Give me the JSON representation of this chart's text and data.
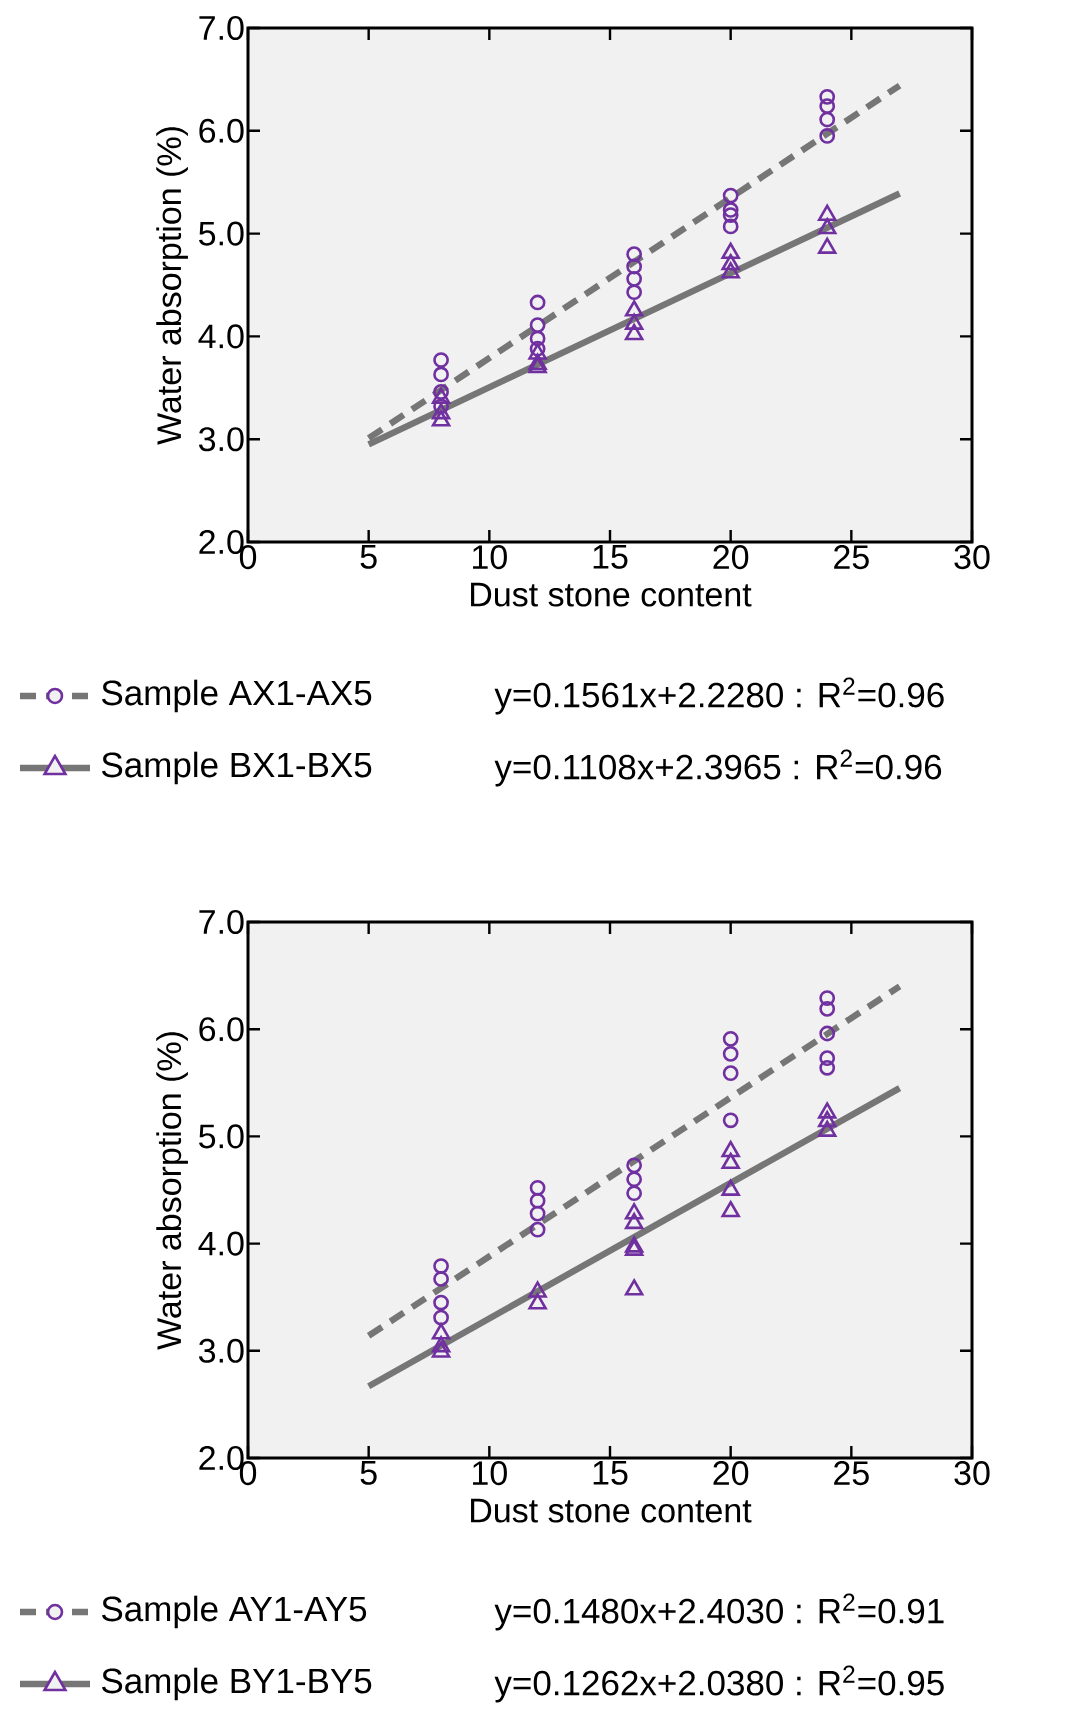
{
  "chart_data": [
    {
      "type": "scatter",
      "xlabel": "Dust stone content",
      "ylabel": "Water absorption (%)",
      "xlim": [
        0,
        30
      ],
      "ylim": [
        2,
        7
      ],
      "xticks": [
        0,
        5,
        10,
        15,
        20,
        25,
        30
      ],
      "yticks": [
        {
          "value": 2,
          "label": "2.0"
        },
        {
          "value": 3,
          "label": "3.0"
        },
        {
          "value": 4,
          "label": "4.0"
        },
        {
          "value": 5,
          "label": "5.0"
        },
        {
          "value": 6,
          "label": "6.0"
        },
        {
          "value": 7,
          "label": "7.0"
        }
      ],
      "legend": "bottom",
      "grid": false,
      "annotations": [
        "y=0.1561x+2.2280 : R$^{2}$=0.96",
        "y=0.1108x+2.3965 : R$^{2}$=0.96"
      ],
      "series": [
        {
          "name": "Sample AX1-AX5",
          "color": "#7030a0",
          "marker": "circle",
          "x": [
            8,
            8,
            8,
            8,
            12,
            12,
            12,
            12,
            16,
            16,
            16,
            16,
            20,
            20,
            20,
            20,
            24,
            24,
            24,
            24
          ],
          "values": [
            3.77,
            3.63,
            3.46,
            3.32,
            4.33,
            4.11,
            3.98,
            3.88,
            4.8,
            4.68,
            4.56,
            4.43,
            5.37,
            5.23,
            5.18,
            5.07,
            6.33,
            6.24,
            6.11,
            5.95
          ]
        },
        {
          "name": "Sample BX1-BX5",
          "color": "#7030a0",
          "marker": "triangle",
          "x": [
            8,
            8,
            8,
            12,
            12,
            12,
            16,
            16,
            16,
            20,
            20,
            20,
            24,
            24,
            24
          ],
          "values": [
            3.4,
            3.25,
            3.18,
            3.83,
            3.73,
            3.7,
            4.25,
            4.12,
            4.02,
            4.81,
            4.7,
            4.62,
            5.18,
            5.05,
            4.86
          ]
        },
        {
          "type": "line",
          "color": "#767676",
          "line_style": "dashed",
          "x": [
            5,
            27
          ],
          "values": [
            3.01,
            6.44
          ]
        },
        {
          "type": "line",
          "color": "#767676",
          "line_style": "solid",
          "x": [
            5,
            27
          ],
          "values": [
            2.95,
            5.39
          ]
        }
      ]
    },
    {
      "type": "scatter",
      "xlabel": "Dust stone content",
      "ylabel": "Water absorption (%)",
      "xlim": [
        0,
        30
      ],
      "ylim": [
        2,
        7
      ],
      "xticks": [
        0,
        5,
        10,
        15,
        20,
        25,
        30
      ],
      "yticks": [
        {
          "value": 2,
          "label": "2.0"
        },
        {
          "value": 3,
          "label": "3.0"
        },
        {
          "value": 4,
          "label": "4.0"
        },
        {
          "value": 5,
          "label": "5.0"
        },
        {
          "value": 6,
          "label": "6.0"
        },
        {
          "value": 7,
          "label": "7.0"
        }
      ],
      "legend": "bottom",
      "grid": false,
      "annotations": [
        "y=0.1480x+2.4030 : R$^{2}$=0.91",
        "y=0.1262x+2.0380 : R$^{2}$=0.95"
      ],
      "series": [
        {
          "name": "Sample AY1-AY5",
          "color": "#7030a0",
          "marker": "circle",
          "x": [
            8,
            8,
            8,
            8,
            12,
            12,
            12,
            12,
            16,
            16,
            16,
            20,
            20,
            20,
            20,
            24,
            24,
            24,
            24,
            24
          ],
          "values": [
            3.79,
            3.67,
            3.45,
            3.31,
            4.52,
            4.4,
            4.28,
            4.13,
            4.73,
            4.6,
            4.47,
            5.91,
            5.77,
            5.59,
            5.15,
            6.29,
            6.19,
            5.96,
            5.73,
            5.64
          ]
        },
        {
          "name": "Sample BY1-BY5",
          "color": "#7030a0",
          "marker": "triangle",
          "x": [
            8,
            8,
            8,
            12,
            12,
            16,
            16,
            16,
            16,
            16,
            20,
            20,
            20,
            20,
            24,
            24,
            24
          ],
          "values": [
            3.16,
            3.04,
            2.99,
            3.55,
            3.44,
            4.28,
            4.19,
            3.97,
            3.94,
            3.57,
            4.86,
            4.75,
            4.5,
            4.3,
            5.22,
            5.14,
            5.05
          ]
        },
        {
          "type": "line",
          "color": "#767676",
          "line_style": "dashed",
          "x": [
            5,
            27
          ],
          "values": [
            3.14,
            6.4
          ]
        },
        {
          "type": "line",
          "color": "#767676",
          "line_style": "solid",
          "x": [
            5,
            27
          ],
          "values": [
            2.67,
            5.45
          ]
        }
      ]
    }
  ]
}
